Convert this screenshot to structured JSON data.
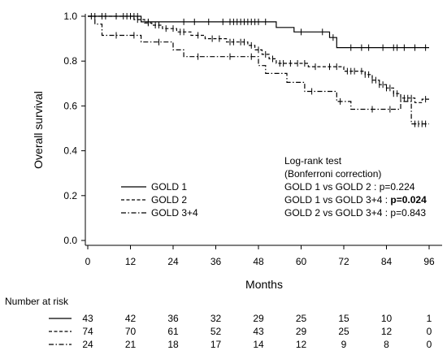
{
  "chart_data": {
    "type": "line",
    "xlabel": "Months",
    "ylabel": "Overall survival",
    "xlim": [
      0,
      98
    ],
    "ylim": [
      0,
      1.0
    ],
    "xticks": [
      0,
      12,
      24,
      36,
      48,
      60,
      72,
      84,
      96
    ],
    "yticks": [
      "0.0",
      "0.2",
      "0.4",
      "0.6",
      "0.8",
      "1.0"
    ],
    "legend_position": "lower-left",
    "series": [
      {
        "name": "GOLD 1",
        "line_style": "solid",
        "steps": [
          [
            0,
            1.0
          ],
          [
            15,
            0.975
          ],
          [
            53,
            0.95
          ],
          [
            58,
            0.93
          ],
          [
            68,
            0.905
          ],
          [
            70,
            0.86
          ],
          [
            96,
            0.86
          ]
        ],
        "censor_times": [
          2,
          5,
          10,
          12,
          13,
          14,
          17,
          27,
          30,
          34,
          38,
          40,
          41,
          42,
          43,
          44,
          45,
          46,
          47,
          48,
          50,
          60,
          66,
          69,
          74,
          77,
          79,
          83,
          86,
          87,
          89,
          92,
          95
        ]
      },
      {
        "name": "GOLD 2",
        "line_style": "dashed",
        "steps": [
          [
            0,
            1.0
          ],
          [
            13,
            0.985
          ],
          [
            16,
            0.97
          ],
          [
            18,
            0.96
          ],
          [
            21,
            0.945
          ],
          [
            25,
            0.93
          ],
          [
            29,
            0.915
          ],
          [
            33,
            0.9
          ],
          [
            39,
            0.885
          ],
          [
            45,
            0.87
          ],
          [
            47,
            0.85
          ],
          [
            49,
            0.83
          ],
          [
            51,
            0.81
          ],
          [
            53,
            0.79
          ],
          [
            62,
            0.775
          ],
          [
            72,
            0.755
          ],
          [
            78,
            0.74
          ],
          [
            80,
            0.715
          ],
          [
            82,
            0.695
          ],
          [
            84,
            0.68
          ],
          [
            86,
            0.655
          ],
          [
            88,
            0.635
          ],
          [
            92,
            0.615
          ],
          [
            94,
            0.63
          ],
          [
            96,
            0.63
          ]
        ],
        "censor_times": [
          1,
          4,
          8,
          11,
          14,
          17,
          19,
          20,
          22,
          24,
          26,
          27,
          31,
          35,
          37,
          40,
          41,
          43,
          44,
          46,
          48,
          50,
          52,
          54,
          55,
          57,
          59,
          61,
          64,
          68,
          70,
          73,
          74,
          75,
          77,
          78,
          79,
          80,
          81,
          82,
          83,
          84,
          85,
          86,
          87,
          88,
          89,
          90,
          91,
          95
        ]
      },
      {
        "name": "GOLD 3+4",
        "line_style": "dash-dot",
        "steps": [
          [
            0,
            1.0
          ],
          [
            2,
            0.965
          ],
          [
            4,
            0.915
          ],
          [
            15,
            0.885
          ],
          [
            24,
            0.85
          ],
          [
            27,
            0.82
          ],
          [
            48,
            0.78
          ],
          [
            50,
            0.745
          ],
          [
            56,
            0.705
          ],
          [
            61,
            0.665
          ],
          [
            70,
            0.62
          ],
          [
            74,
            0.585
          ],
          [
            88,
            0.62
          ],
          [
            91,
            0.52
          ],
          [
            92,
            0.52
          ],
          [
            96,
            0.52
          ]
        ],
        "censor_times": [
          8,
          13,
          20,
          31,
          40,
          46,
          63,
          71,
          80,
          85,
          92,
          93,
          94,
          95
        ]
      }
    ],
    "annotation": {
      "heading": "Log-rank test",
      "subheading": "(Bonferroni correction)",
      "lines": [
        {
          "left": "GOLD 1 vs GOLD 2 : ",
          "p": "p=0.224",
          "bold": false
        },
        {
          "left": "GOLD 1 vs GOLD 3+4 : ",
          "p": "p=0.024",
          "bold": true
        },
        {
          "left": "GOLD 2 vs GOLD 3+4 : ",
          "p": "p=0.843",
          "bold": false
        }
      ]
    },
    "risk_table": {
      "title": "Number at risk",
      "times": [
        0,
        12,
        24,
        36,
        48,
        60,
        72,
        84,
        96
      ],
      "rows": [
        {
          "line_style": "solid",
          "values": [
            "43",
            "42",
            "36",
            "32",
            "29",
            "25",
            "15",
            "10",
            "1"
          ]
        },
        {
          "line_style": "dashed",
          "values": [
            "74",
            "70",
            "61",
            "52",
            "43",
            "29",
            "25",
            "12",
            "0"
          ]
        },
        {
          "line_style": "dash-dot",
          "values": [
            "24",
            "21",
            "18",
            "17",
            "14",
            "12",
            "9",
            "8",
            "0"
          ]
        }
      ]
    }
  }
}
